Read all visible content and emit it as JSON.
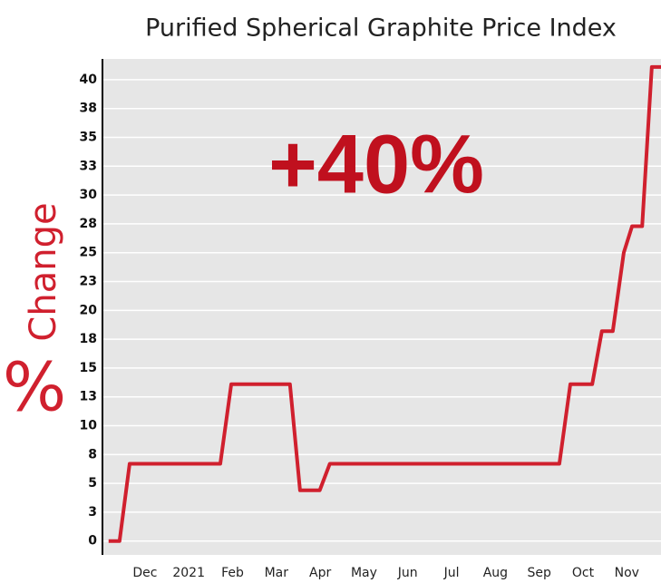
{
  "chart_data": {
    "type": "line",
    "title": "Purified Spherical Graphite Price Index",
    "ylabel_prefix": "%",
    "ylabel": "Change",
    "annotation": "+40%",
    "xlim": [
      -0.97,
      11.78
    ],
    "xticks": [
      {
        "value": 0,
        "label": "Dec"
      },
      {
        "value": 1,
        "label": "2021"
      },
      {
        "value": 2,
        "label": "Feb"
      },
      {
        "value": 3,
        "label": "Mar"
      },
      {
        "value": 4,
        "label": "Apr"
      },
      {
        "value": 5,
        "label": "May"
      },
      {
        "value": 6,
        "label": "Jun"
      },
      {
        "value": 7,
        "label": "Jul"
      },
      {
        "value": 8,
        "label": "Aug"
      },
      {
        "value": 9,
        "label": "Sep"
      },
      {
        "value": 10,
        "label": "Oct"
      },
      {
        "value": 11,
        "label": "Nov"
      }
    ],
    "ylim": [
      -1.2,
      41.8
    ],
    "yticks": [
      0,
      {
        "value": 2.5,
        "label": "3"
      },
      5,
      {
        "value": 7.5,
        "label": "8"
      },
      10,
      {
        "value": 12.5,
        "label": "13"
      },
      15,
      {
        "value": 17.5,
        "label": "18"
      },
      20,
      {
        "value": 22.5,
        "label": "23"
      },
      25,
      {
        "value": 27.5,
        "label": "28"
      },
      30,
      {
        "value": 32.5,
        "label": "33"
      },
      35,
      {
        "value": 37.5,
        "label": "38"
      },
      40
    ],
    "grid": true,
    "series": [
      {
        "color": "#d0202e",
        "x": [
          -0.83,
          -0.58,
          -0.35,
          1.72,
          1.97,
          3.31,
          3.54,
          3.99,
          4.22,
          9.46,
          9.71,
          10.21,
          10.43,
          10.68,
          10.93,
          11.12,
          11.35,
          11.57,
          11.78
        ],
        "values": [
          0,
          0,
          6.7,
          6.7,
          13.6,
          13.6,
          4.4,
          4.4,
          6.7,
          6.7,
          13.6,
          13.6,
          18.2,
          18.2,
          25.0,
          27.3,
          27.3,
          41.1,
          41.1
        ]
      }
    ]
  }
}
